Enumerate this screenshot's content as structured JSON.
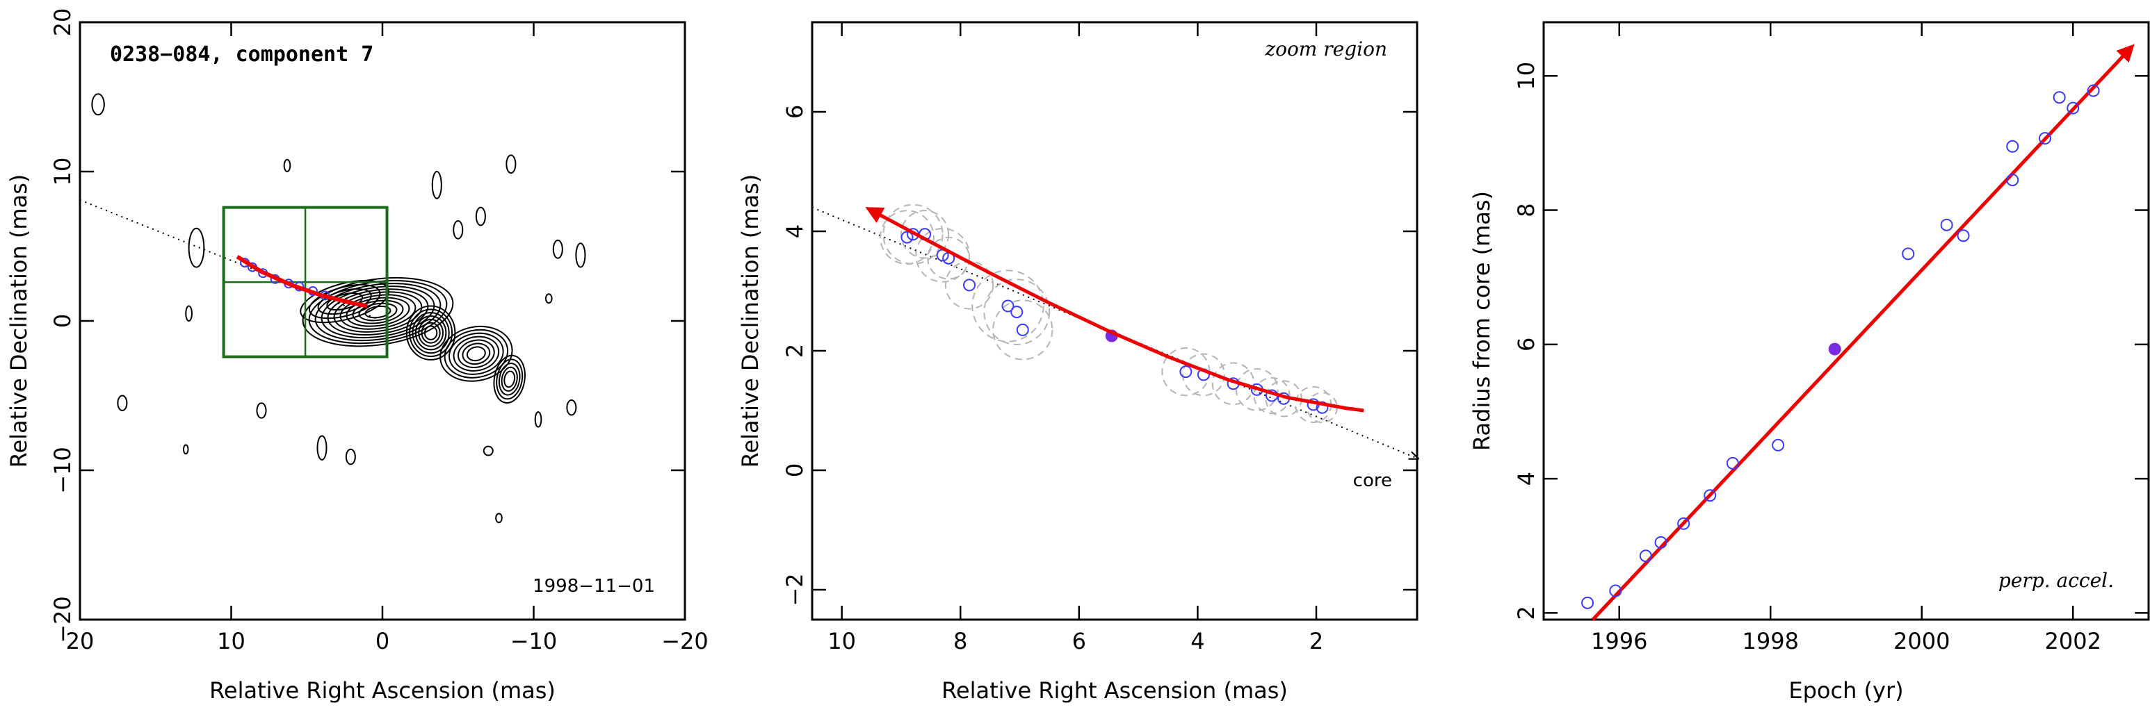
{
  "chart_data": [
    {
      "type": "scatter",
      "subtype": "contour-map",
      "title": "0238−084, component 7",
      "date_label": "1998−11−01",
      "xlabel": "Relative Right Ascension (mas)",
      "ylabel": "Relative Declination (mas)",
      "xlim": [
        20,
        -20
      ],
      "ylim": [
        -20,
        20
      ],
      "x_ticks": [
        20,
        10,
        0,
        -10,
        -20
      ],
      "x_tick_labels": [
        "20",
        "10",
        "0",
        "−10",
        "−20"
      ],
      "y_ticks": [
        -20,
        -10,
        0,
        10,
        20
      ],
      "y_tick_labels": [
        "−20",
        "−10",
        "0",
        "10",
        "20"
      ],
      "zoom_box": {
        "x": [
          10.5,
          -0.3
        ],
        "y": [
          -2.4,
          7.6
        ],
        "color": "#1a6b1a"
      },
      "direction_line": {
        "x": [
          20,
          0
        ],
        "y": [
          8.1,
          0
        ]
      },
      "trajectory": {
        "x": [
          9.6,
          8.0,
          6.0,
          4.0,
          2.0,
          1.0
        ],
        "y": [
          4.3,
          3.3,
          2.4,
          1.7,
          1.2,
          1.0
        ],
        "color": "#ee0000"
      },
      "positions": {
        "x": [
          9.1,
          8.6,
          7.9,
          7.1,
          6.2,
          5.5,
          4.6,
          3.8
        ],
        "y": [
          3.9,
          3.6,
          3.2,
          2.8,
          2.5,
          2.3,
          2.0,
          1.7
        ]
      },
      "contour_color": "#000000"
    },
    {
      "type": "scatter",
      "annotation": "zoom region",
      "core_label": "core",
      "xlabel": "Relative Right Ascension (mas)",
      "ylabel": "Relative Declination (mas)",
      "xlim": [
        10.5,
        0.3
      ],
      "ylim": [
        -2.5,
        7.5
      ],
      "x_ticks": [
        10,
        8,
        6,
        4,
        2
      ],
      "x_tick_labels": [
        "10",
        "8",
        "6",
        "4",
        "2"
      ],
      "y_ticks": [
        -2,
        0,
        2,
        4,
        6
      ],
      "y_tick_labels": [
        "−2",
        "0",
        "2",
        "4",
        "6"
      ],
      "series": [
        {
          "x": [
            8.9,
            8.8,
            8.6,
            8.3,
            8.2,
            7.85,
            7.2,
            7.05,
            6.95,
            4.2,
            3.9,
            3.4,
            3.0,
            2.75,
            2.55,
            2.05,
            1.9
          ],
          "y": [
            3.9,
            3.95,
            3.95,
            3.6,
            3.55,
            3.1,
            2.75,
            2.65,
            2.35,
            1.65,
            1.6,
            1.45,
            1.35,
            1.25,
            1.2,
            1.1,
            1.05
          ],
          "error_radius": [
            0.45,
            0.5,
            0.4,
            0.45,
            0.35,
            0.4,
            0.6,
            0.55,
            0.5,
            0.4,
            0.35,
            0.35,
            0.35,
            0.3,
            0.3,
            0.3,
            0.25
          ],
          "marker": "open-circle",
          "color": "#3a3aff"
        }
      ],
      "highlight_point": {
        "x": 5.45,
        "y": 2.25,
        "color": "#7a2be0"
      },
      "fit": {
        "x": [
          9.5,
          8.5,
          7.5,
          6.5,
          5.5,
          4.5,
          3.5,
          2.5,
          1.5,
          1.2
        ],
        "y": [
          4.35,
          3.82,
          3.3,
          2.8,
          2.33,
          1.9,
          1.52,
          1.22,
          1.04,
          1.0
        ],
        "color": "#ee0000"
      },
      "direction_line": {
        "x": [
          10.5,
          0.3
        ],
        "y": [
          4.4,
          0.2
        ]
      }
    },
    {
      "type": "scatter",
      "annotation": "perp. accel.",
      "xlabel": "Epoch (yr)",
      "ylabel": "Radius from core (mas)",
      "xlim": [
        1995.0,
        2003.0
      ],
      "ylim": [
        1.9,
        10.8
      ],
      "x_ticks": [
        1996,
        1998,
        2000,
        2002
      ],
      "x_tick_labels": [
        "1996",
        "1998",
        "2000",
        "2002"
      ],
      "y_ticks": [
        2,
        4,
        6,
        8,
        10
      ],
      "y_tick_labels": [
        "2",
        "4",
        "6",
        "8",
        "10"
      ],
      "series": [
        {
          "x": [
            1995.58,
            1995.95,
            1996.35,
            1996.55,
            1996.85,
            1997.2,
            1997.5,
            1998.1,
            1999.82,
            2000.33,
            2000.55,
            2001.2,
            2001.2,
            2001.63,
            2001.82,
            2002.0,
            2002.27
          ],
          "y": [
            2.15,
            2.33,
            2.85,
            3.05,
            3.33,
            3.75,
            4.23,
            4.5,
            7.35,
            7.78,
            7.62,
            8.45,
            8.95,
            9.07,
            9.68,
            9.52,
            9.78
          ],
          "marker": "open-circle",
          "color": "#3a3aff"
        }
      ],
      "highlight_point": {
        "x": 1998.85,
        "y": 5.93,
        "color": "#7a2be0"
      },
      "fit": {
        "x": [
          1995.65,
          2002.75
        ],
        "y": [
          1.9,
          10.4
        ],
        "color": "#ee0000"
      }
    }
  ]
}
